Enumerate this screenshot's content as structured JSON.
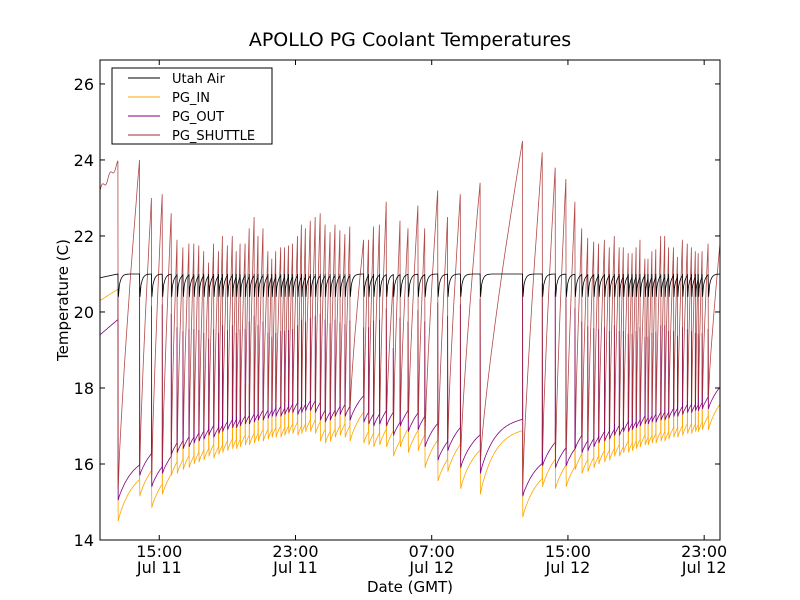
{
  "chart_data": {
    "type": "line",
    "title": "APOLLO PG Coolant Temperatures",
    "xlabel": "Date (GMT)",
    "ylabel": "Temperature (C)",
    "x_units": "hours since 00:00 Jul 11 (GMT)",
    "xlim": [
      11.52,
      47.93
    ],
    "ylim": [
      14,
      26.63
    ],
    "grid": false,
    "legend": {
      "placement": "top-left",
      "entries": [
        "Utah Air",
        "PG_IN",
        "PG_OUT",
        "PG_SHUTTLE"
      ]
    },
    "x_ticks": [
      {
        "value": 15,
        "line1": "15:00",
        "line2": "Jul 11"
      },
      {
        "value": 23,
        "line1": "23:00",
        "line2": "Jul 11"
      },
      {
        "value": 31,
        "line1": "07:00",
        "line2": "Jul 12"
      },
      {
        "value": 39,
        "line1": "15:00",
        "line2": "Jul 12"
      },
      {
        "value": 47,
        "line1": "23:00",
        "line2": "Jul 12"
      }
    ],
    "y_ticks": [
      14,
      16,
      18,
      20,
      22,
      24,
      26
    ],
    "series": [
      {
        "name": "Utah Air",
        "color": "#000000",
        "start": 20.9,
        "plateau": 21.0,
        "dip": 20.4
      },
      {
        "name": "PG_IN",
        "color": "#FFA500",
        "start": 20.3,
        "pre_first_spike": 20.6
      },
      {
        "name": "PG_OUT",
        "color": "#800080",
        "start": 19.4,
        "pre_first_spike": 19.8,
        "trough_offset": 0.55,
        "ramp_ceiling": 19.6
      },
      {
        "name": "PG_SHUTTLE",
        "color": "#A52A2A",
        "start": 23.2,
        "pre_first_spike": 23.9
      }
    ],
    "cycles": {
      "spike_times": [
        12.57,
        13.84,
        14.54,
        15.17,
        15.7,
        16.04,
        16.39,
        16.74,
        17.03,
        17.32,
        17.61,
        17.9,
        18.19,
        18.48,
        18.71,
        19.0,
        19.29,
        19.52,
        19.75,
        20.04,
        20.28,
        20.57,
        20.8,
        21.09,
        21.38,
        21.61,
        21.84,
        22.13,
        22.36,
        22.59,
        22.83,
        23.12,
        23.35,
        23.58,
        23.87,
        24.16,
        24.45,
        24.74,
        25.03,
        25.32,
        25.61,
        25.9,
        26.19,
        27.0,
        27.29,
        27.58,
        27.93,
        28.33,
        28.74,
        29.14,
        29.61,
        30.19,
        30.59,
        31.35,
        31.93,
        32.68,
        33.84,
        36.33,
        37.49,
        38.25,
        38.88,
        39.41,
        39.81,
        40.16,
        40.51,
        40.8,
        41.14,
        41.43,
        41.72,
        42.01,
        42.25,
        42.54,
        42.77,
        43.0,
        43.23,
        43.52,
        43.7,
        43.93,
        44.16,
        44.45,
        44.68,
        44.91,
        45.2,
        45.43,
        45.72,
        46.01,
        46.25,
        46.48,
        46.65,
        46.88,
        47.23
      ],
      "pg_shuttle_peaks": [
        23.9,
        24.0,
        23.0,
        23.1,
        22.6,
        21.9,
        21.7,
        21.8,
        21.8,
        21.75,
        21.6,
        21.3,
        21.8,
        21.6,
        22.0,
        21.75,
        22.0,
        21.6,
        21.8,
        21.8,
        22.2,
        22.5,
        22.0,
        22.2,
        21.6,
        21.4,
        21.6,
        21.7,
        21.7,
        21.75,
        21.8,
        22.0,
        22.3,
        22.2,
        22.4,
        22.5,
        22.6,
        22.3,
        22.1,
        22.3,
        22.15,
        22.05,
        22.25,
        21.9,
        21.9,
        22.25,
        22.3,
        22.9,
        20.8,
        22.4,
        22.2,
        22.8,
        22.2,
        23.2,
        22.5,
        23.1,
        23.4,
        24.5,
        24.2,
        23.8,
        23.5,
        22.9,
        22.2,
        21.95,
        21.85,
        21.8,
        21.9,
        21.7,
        22.0,
        21.7,
        21.7,
        21.55,
        21.55,
        21.7,
        21.9,
        21.4,
        21.4,
        21.6,
        21.65,
        22.0,
        22.0,
        21.7,
        21.7,
        21.45,
        21.9,
        21.8,
        21.7,
        21.6,
        21.55,
        21.6,
        21.8
      ],
      "pg_in_troughs": [
        14.5,
        15.15,
        14.85,
        15.2,
        15.7,
        15.75,
        15.85,
        15.9,
        16.0,
        16.05,
        16.1,
        16.2,
        16.15,
        16.25,
        16.3,
        16.35,
        16.4,
        16.4,
        16.45,
        16.5,
        16.5,
        16.55,
        16.6,
        16.6,
        16.65,
        16.7,
        16.7,
        16.7,
        16.75,
        16.8,
        16.8,
        16.75,
        16.8,
        16.85,
        16.85,
        16.8,
        16.6,
        16.55,
        16.6,
        16.7,
        16.75,
        16.7,
        16.6,
        16.55,
        16.5,
        16.45,
        16.5,
        16.45,
        16.2,
        16.45,
        16.3,
        16.35,
        15.9,
        15.55,
        15.8,
        15.35,
        15.2,
        14.6,
        15.4,
        15.35,
        15.4,
        15.85,
        15.75,
        15.8,
        15.9,
        16.0,
        16.05,
        16.1,
        16.2,
        16.2,
        16.3,
        16.3,
        16.35,
        16.4,
        16.45,
        16.5,
        16.5,
        16.55,
        16.55,
        16.6,
        16.6,
        16.65,
        16.7,
        16.7,
        16.75,
        16.8,
        16.8,
        16.85,
        16.85,
        16.9,
        16.9
      ]
    }
  }
}
